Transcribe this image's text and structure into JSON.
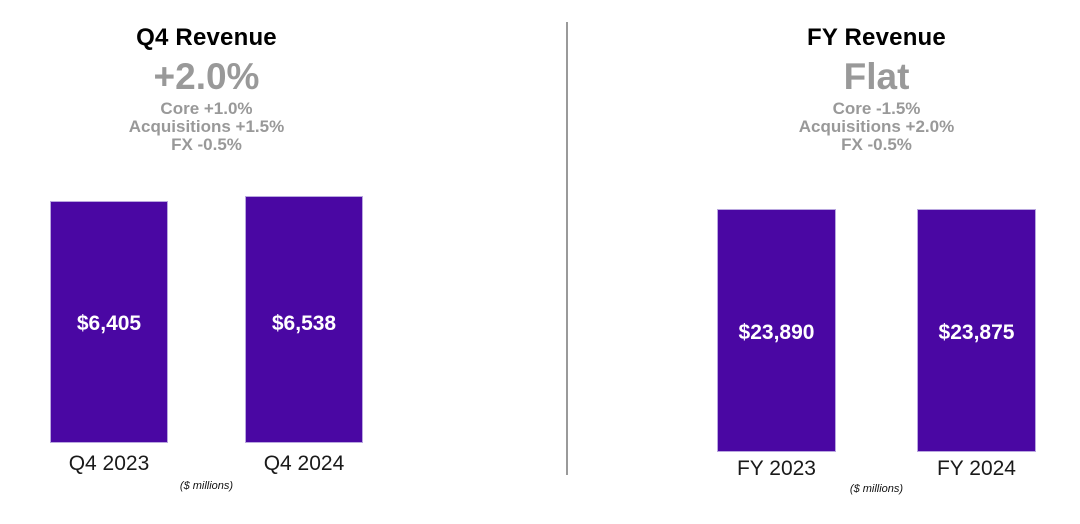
{
  "colors": {
    "bar": "#4a07a3",
    "bar_border": "#b9a7df",
    "muted": "#999999",
    "ink": "#000000",
    "divider": "#9a9a9a",
    "value_label": "#ffffff"
  },
  "chart_data": [
    {
      "type": "bar",
      "title": "Q4 Revenue",
      "growth_label": "+2.0%",
      "breakdown": [
        "Core +1.0%",
        "Acquisitions +1.5%",
        "FX -0.5%"
      ],
      "categories": [
        "Q4 2023",
        "Q4 2024"
      ],
      "values": [
        6405,
        6538
      ],
      "value_labels": [
        "$6,405",
        "$6,538"
      ],
      "footnote": "($ millions)",
      "ylabel": "",
      "xlabel": "",
      "ylim": [
        0,
        6538
      ],
      "grid": false,
      "legend": "none"
    },
    {
      "type": "bar",
      "title": "FY Revenue",
      "growth_label": "Flat",
      "breakdown": [
        "Core -1.5%",
        "Acquisitions +2.0%",
        "FX -0.5%"
      ],
      "categories": [
        "FY 2023",
        "FY 2024"
      ],
      "values": [
        23890,
        23875
      ],
      "value_labels": [
        "$23,890",
        "$23,875"
      ],
      "footnote": "($ millions)",
      "ylabel": "",
      "xlabel": "",
      "ylim": [
        0,
        23890
      ],
      "grid": false,
      "legend": "none"
    }
  ]
}
